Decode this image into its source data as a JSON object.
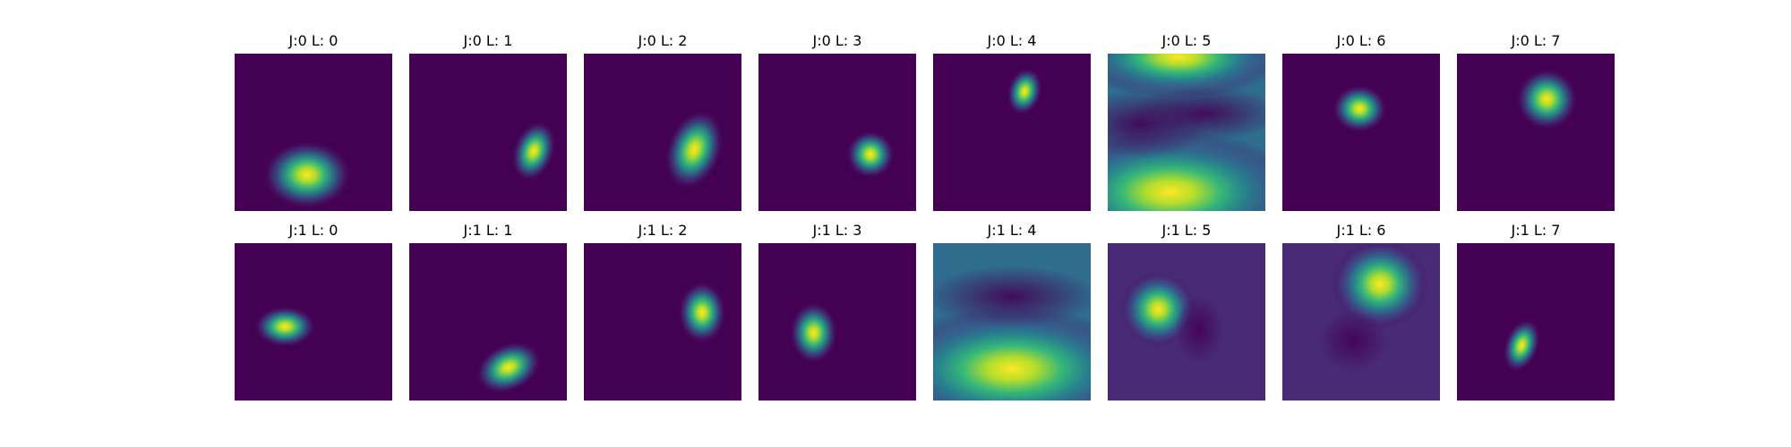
{
  "chart_data": {
    "type": "heatmap",
    "colormap": "viridis",
    "colors": {
      "background": "#ffffff",
      "low": "#440154",
      "high": "#fde725"
    },
    "rows": 2,
    "cols": 8,
    "panels": [
      {
        "title": "J:0 L: 0",
        "pattern": "blob",
        "cx": 0.46,
        "cy": 0.77,
        "sx": 0.13,
        "sy": 0.1,
        "angle": 0
      },
      {
        "title": "J:0 L: 1",
        "pattern": "blob",
        "cx": 0.79,
        "cy": 0.62,
        "sx": 0.06,
        "sy": 0.09,
        "angle": 20
      },
      {
        "title": "J:0 L: 2",
        "pattern": "blob",
        "cx": 0.7,
        "cy": 0.61,
        "sx": 0.08,
        "sy": 0.12,
        "angle": 20
      },
      {
        "title": "J:0 L: 3",
        "pattern": "blob",
        "cx": 0.71,
        "cy": 0.64,
        "sx": 0.07,
        "sy": 0.07,
        "angle": 0
      },
      {
        "title": "J:0 L: 4",
        "pattern": "blob",
        "cx": 0.58,
        "cy": 0.24,
        "sx": 0.05,
        "sy": 0.07,
        "angle": 15
      },
      {
        "title": "J:0 L: 5",
        "pattern": "broad-top-bottom",
        "cx": 0.4,
        "cy": 0.88,
        "sx": 0.38,
        "sy": 0.18,
        "angle": 0
      },
      {
        "title": "J:0 L: 6",
        "pattern": "blob",
        "cx": 0.49,
        "cy": 0.35,
        "sx": 0.08,
        "sy": 0.07,
        "angle": 0
      },
      {
        "title": "J:0 L: 7",
        "pattern": "blob",
        "cx": 0.57,
        "cy": 0.29,
        "sx": 0.09,
        "sy": 0.09,
        "angle": 0
      }
    ],
    "panels_row2": [
      {
        "title": "J:1 L: 0",
        "pattern": "blob",
        "cx": 0.32,
        "cy": 0.53,
        "sx": 0.09,
        "sy": 0.06,
        "angle": 0
      },
      {
        "title": "J:1 L: 1",
        "pattern": "blob",
        "cx": 0.63,
        "cy": 0.79,
        "sx": 0.1,
        "sy": 0.07,
        "angle": -25
      },
      {
        "title": "J:1 L: 2",
        "pattern": "blob",
        "cx": 0.75,
        "cy": 0.44,
        "sx": 0.07,
        "sy": 0.09,
        "angle": 0
      },
      {
        "title": "J:1 L: 3",
        "pattern": "blob",
        "cx": 0.35,
        "cy": 0.57,
        "sx": 0.07,
        "sy": 0.09,
        "angle": 0
      },
      {
        "title": "J:1 L: 4",
        "pattern": "broad-bottom",
        "cx": 0.5,
        "cy": 0.8,
        "sx": 0.38,
        "sy": 0.18,
        "angle": 0
      },
      {
        "title": "J:1 L: 5",
        "pattern": "blob-dark",
        "cx": 0.32,
        "cy": 0.42,
        "sx": 0.11,
        "sy": 0.11,
        "angle": 0
      },
      {
        "title": "J:1 L: 6",
        "pattern": "blob-dark",
        "cx": 0.62,
        "cy": 0.26,
        "sx": 0.14,
        "sy": 0.13,
        "angle": 0
      },
      {
        "title": "J:1 L: 7",
        "pattern": "blob",
        "cx": 0.41,
        "cy": 0.65,
        "sx": 0.05,
        "sy": 0.08,
        "angle": 20
      }
    ]
  }
}
